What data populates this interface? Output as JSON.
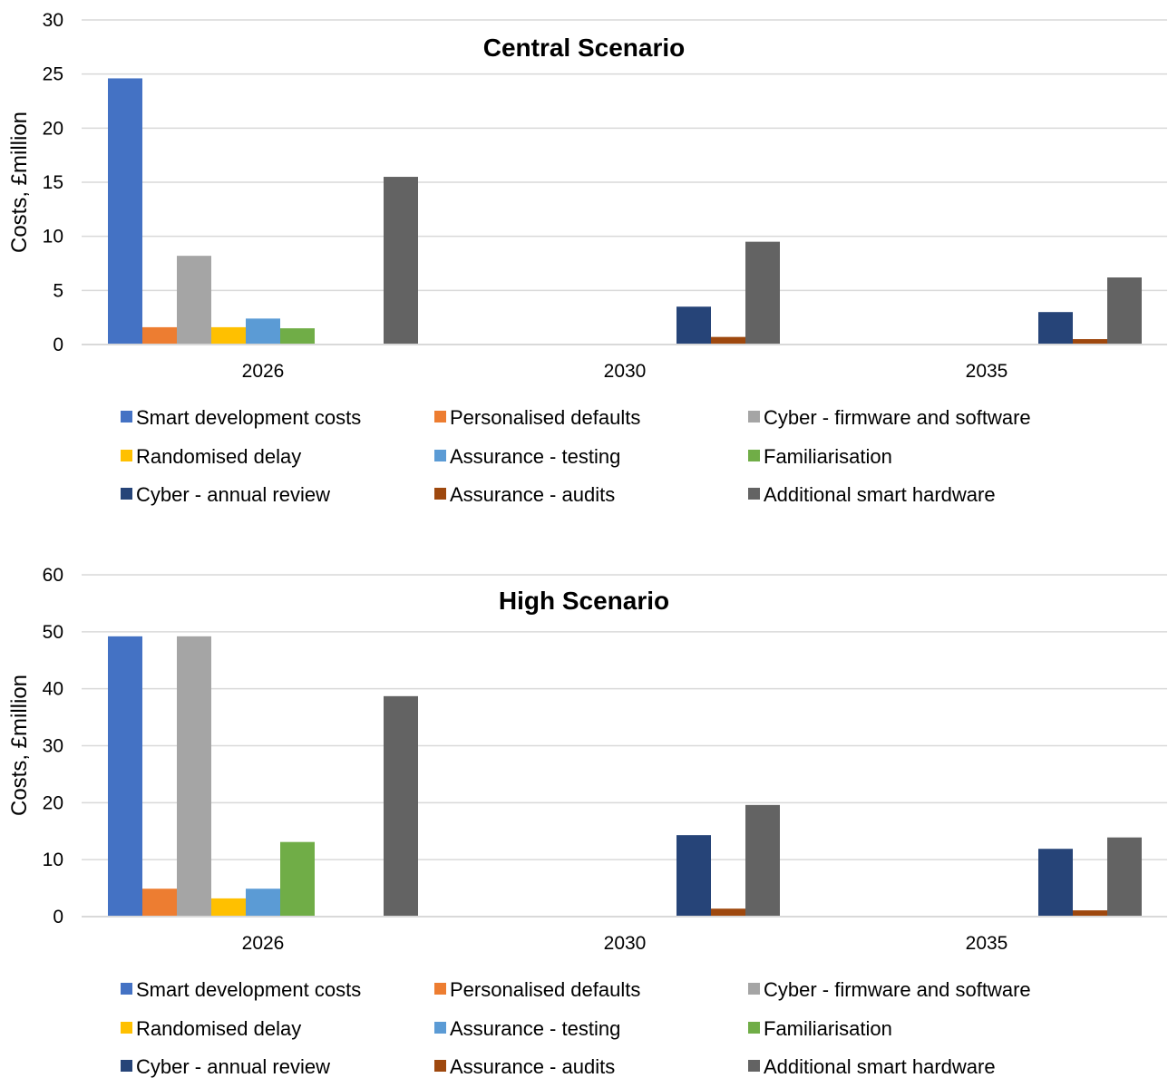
{
  "colors": {
    "grid": "#d9d9d9",
    "axis": "#d9d9d9"
  },
  "chart_data": [
    {
      "type": "bar",
      "title": "Central Scenario",
      "xlabel": "",
      "ylabel": "Costs, £million",
      "ylim": [
        0,
        30
      ],
      "yticks": [
        0,
        5,
        10,
        15,
        20,
        25,
        30
      ],
      "grid": true,
      "legend": "bottom",
      "categories": [
        "2026",
        "2030",
        "2035"
      ],
      "series": [
        {
          "name": "Smart development costs",
          "color": "#4472c4",
          "values": [
            24.6,
            0,
            0
          ]
        },
        {
          "name": "Personalised defaults",
          "color": "#ed7d31",
          "values": [
            1.6,
            0,
            0
          ]
        },
        {
          "name": "Cyber - firmware and software",
          "color": "#a5a5a5",
          "values": [
            8.2,
            0,
            0
          ]
        },
        {
          "name": "Randomised delay",
          "color": "#ffc000",
          "values": [
            1.6,
            0,
            0
          ]
        },
        {
          "name": "Assurance - testing",
          "color": "#5b9bd5",
          "values": [
            2.4,
            0,
            0
          ]
        },
        {
          "name": "Familiarisation",
          "color": "#70ad47",
          "values": [
            1.5,
            0,
            0
          ]
        },
        {
          "name": "Cyber - annual review",
          "color": "#264478",
          "values": [
            0,
            3.5,
            3.0
          ]
        },
        {
          "name": "Assurance - audits",
          "color": "#9e480e",
          "values": [
            0,
            0.7,
            0.5
          ]
        },
        {
          "name": "Additional smart hardware",
          "color": "#636363",
          "values": [
            15.5,
            9.5,
            6.2
          ]
        }
      ]
    },
    {
      "type": "bar",
      "title": "High Scenario",
      "xlabel": "",
      "ylabel": "Costs, £million",
      "ylim": [
        0,
        60
      ],
      "yticks": [
        0,
        10,
        20,
        30,
        40,
        50,
        60
      ],
      "grid": true,
      "legend": "bottom",
      "categories": [
        "2026",
        "2030",
        "2035"
      ],
      "series": [
        {
          "name": "Smart development costs",
          "color": "#4472c4",
          "values": [
            49.2,
            0,
            0
          ]
        },
        {
          "name": "Personalised defaults",
          "color": "#ed7d31",
          "values": [
            4.9,
            0,
            0
          ]
        },
        {
          "name": "Cyber - firmware and software",
          "color": "#a5a5a5",
          "values": [
            49.2,
            0,
            0
          ]
        },
        {
          "name": "Randomised delay",
          "color": "#ffc000",
          "values": [
            3.2,
            0,
            0
          ]
        },
        {
          "name": "Assurance - testing",
          "color": "#5b9bd5",
          "values": [
            4.9,
            0,
            0
          ]
        },
        {
          "name": "Familiarisation",
          "color": "#70ad47",
          "values": [
            13.1,
            0,
            0
          ]
        },
        {
          "name": "Cyber - annual review",
          "color": "#264478",
          "values": [
            0,
            14.3,
            11.9
          ]
        },
        {
          "name": "Assurance - audits",
          "color": "#9e480e",
          "values": [
            0,
            1.4,
            1.1
          ]
        },
        {
          "name": "Additional smart hardware",
          "color": "#636363",
          "values": [
            38.7,
            19.6,
            13.9
          ]
        }
      ]
    }
  ]
}
